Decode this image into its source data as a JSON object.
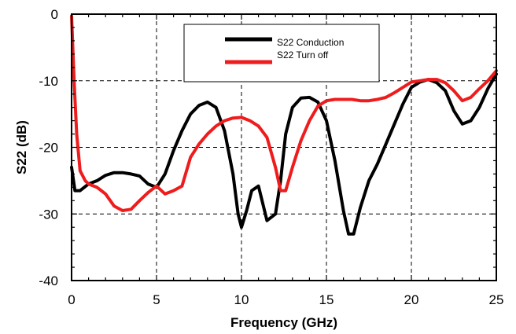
{
  "chart_data": {
    "type": "line",
    "xlabel": "Frequency (GHz)",
    "ylabel": "S22 (dB)",
    "xlim": [
      0,
      25
    ],
    "ylim": [
      -40,
      0
    ],
    "xticks": [
      0,
      5,
      10,
      15,
      20,
      25
    ],
    "yticks": [
      0,
      -10,
      -20,
      -30,
      -40
    ],
    "grid": "dashed at major ticks",
    "legend_position": "top-center",
    "series": [
      {
        "name": "S22 Conduction",
        "color": "#000000",
        "x": [
          0,
          0.2,
          0.5,
          1,
          1.5,
          2,
          2.5,
          3,
          3.5,
          4,
          4.5,
          5,
          5.5,
          6,
          6.5,
          7,
          7.5,
          8,
          8.5,
          9,
          9.5,
          9.8,
          10,
          10.3,
          10.6,
          11,
          11.5,
          12,
          12.3,
          12.6,
          13,
          13.5,
          14,
          14.5,
          15,
          15.5,
          16,
          16.3,
          16.6,
          17,
          17.5,
          18,
          18.5,
          19,
          19.5,
          20,
          20.5,
          21,
          21.5,
          22,
          22.5,
          23,
          23.5,
          24,
          24.5,
          25
        ],
        "y": [
          -23,
          -26.5,
          -26.5,
          -25.5,
          -25,
          -24.2,
          -23.8,
          -23.8,
          -24,
          -24.3,
          -25.5,
          -26,
          -24,
          -20.5,
          -17.5,
          -15,
          -13.7,
          -13.2,
          -14,
          -17.5,
          -24,
          -30,
          -32,
          -29.5,
          -26.5,
          -25.8,
          -31,
          -30,
          -25,
          -18,
          -14,
          -12.6,
          -12.5,
          -13.2,
          -16,
          -22,
          -29.5,
          -33,
          -33,
          -29,
          -25,
          -22.5,
          -19.5,
          -16.5,
          -13.5,
          -11,
          -10.2,
          -9.8,
          -10.3,
          -11.5,
          -14.5,
          -16.5,
          -16,
          -14,
          -11.2,
          -9
        ]
      },
      {
        "name": "S22 Turn off",
        "color": "#ee1c1c",
        "x": [
          0,
          0.15,
          0.3,
          0.5,
          0.8,
          1,
          1.5,
          2,
          2.5,
          3,
          3.5,
          4,
          4.5,
          5,
          5.5,
          6,
          6.5,
          7,
          7.5,
          8,
          8.5,
          9,
          9.5,
          10,
          10.5,
          11,
          11.5,
          12,
          12.3,
          12.6,
          13,
          13.5,
          14,
          14.5,
          15,
          15.5,
          16,
          16.5,
          17,
          17.5,
          18,
          18.5,
          19,
          19.5,
          20,
          20.5,
          21,
          21.5,
          22,
          22.5,
          23,
          23.5,
          24,
          24.5,
          25
        ],
        "y": [
          -0.3,
          -10,
          -18,
          -23.5,
          -25,
          -25.5,
          -26,
          -27,
          -28.8,
          -29.5,
          -29.3,
          -28,
          -26.8,
          -25.8,
          -27,
          -26.5,
          -25.8,
          -21.5,
          -19.5,
          -18,
          -16.8,
          -16,
          -15.6,
          -15.5,
          -16,
          -16.8,
          -18.5,
          -23,
          -26.5,
          -26.5,
          -23,
          -19,
          -16,
          -13.8,
          -13,
          -12.8,
          -12.8,
          -12.8,
          -13,
          -13,
          -12.8,
          -12.5,
          -11.8,
          -11,
          -10.2,
          -10,
          -9.8,
          -9.8,
          -10.3,
          -11.5,
          -13,
          -12.5,
          -11.2,
          -10,
          -8.5
        ]
      }
    ]
  }
}
